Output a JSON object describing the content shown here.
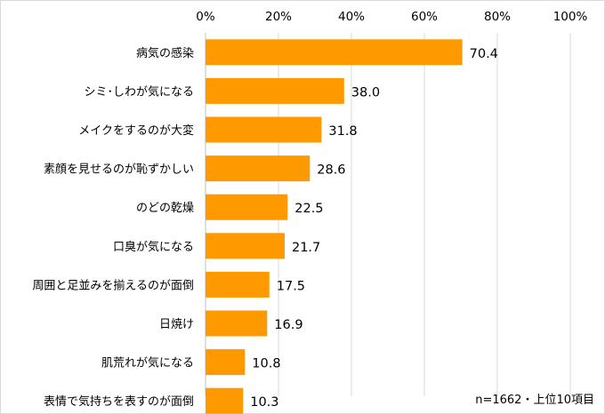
{
  "chart_data": {
    "type": "bar",
    "orientation": "horizontal",
    "categories": [
      "病気の感染",
      "シミ･しわが気になる",
      "メイクをするのが大変",
      "素顔を見せるのが恥ずかしい",
      "のどの乾燥",
      "口臭が気になる",
      "周囲と足並みを揃えるのが面倒",
      "日焼け",
      "肌荒れが気になる",
      "表情で気持ちを表すのが面倒"
    ],
    "values": [
      70.4,
      38.0,
      31.8,
      28.6,
      22.5,
      21.7,
      17.5,
      16.9,
      10.8,
      10.3
    ],
    "value_labels": [
      "70.4",
      "38.0",
      "31.8",
      "28.6",
      "22.5",
      "21.7",
      "17.5",
      "16.9",
      "10.8",
      "10.3"
    ],
    "xlim": [
      0,
      100
    ],
    "x_ticks": [
      0,
      20,
      40,
      60,
      80,
      100
    ],
    "x_tick_labels": [
      "0%",
      "20%",
      "40%",
      "60%",
      "80%",
      "100%"
    ],
    "x_axis_position": "top",
    "grid": true,
    "bar_color": "#ff9900",
    "grid_color": "#d9d9d9",
    "note": "n=1662・上位10項目"
  }
}
